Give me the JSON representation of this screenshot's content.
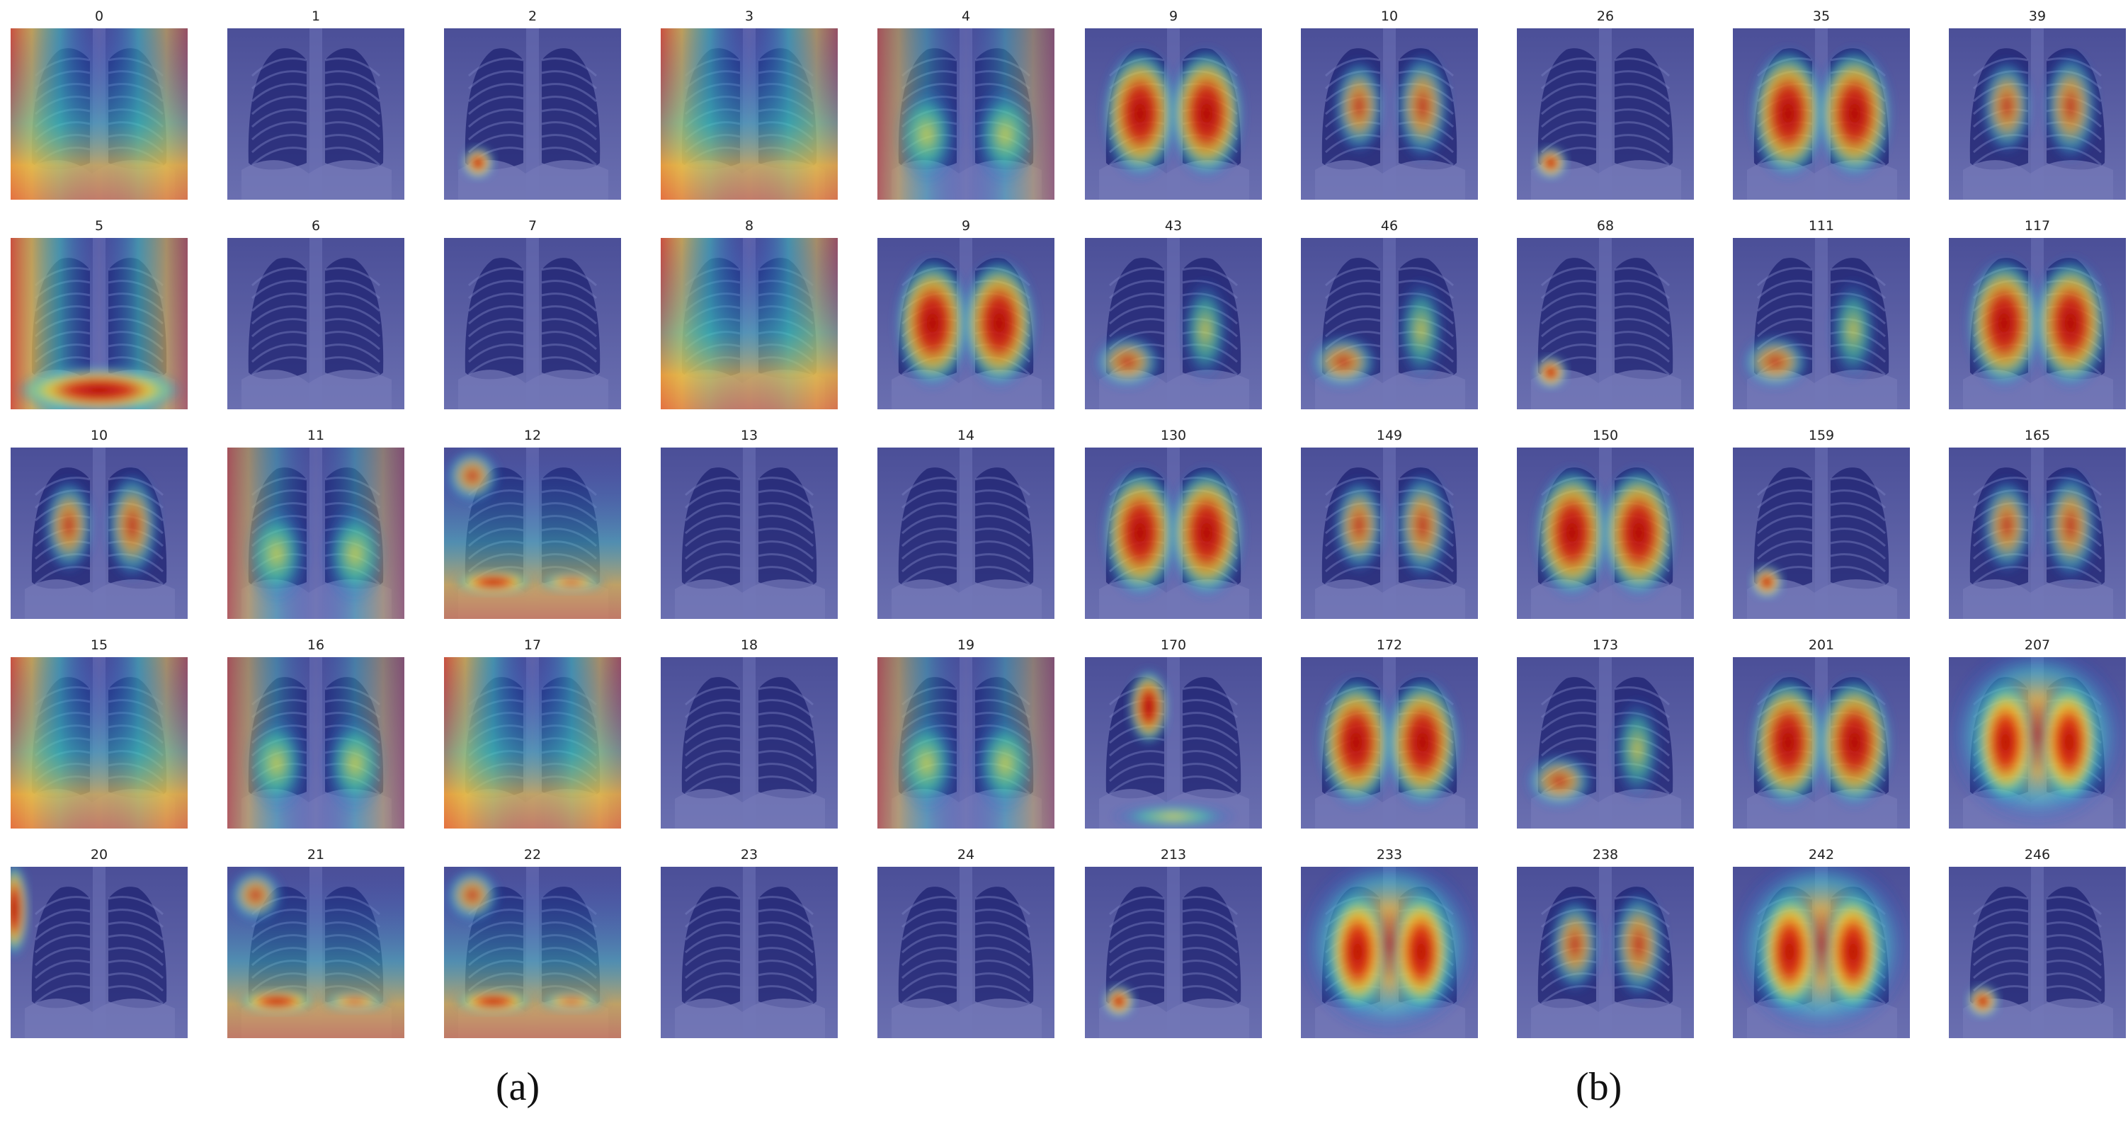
{
  "panel_labels": {
    "a": "(a)",
    "b": "(b)"
  },
  "colormap": "jet",
  "panels": [
    {
      "key": "a",
      "rows": [
        [
          {
            "label": "0",
            "heat": "edges-warm"
          },
          {
            "label": "1",
            "heat": "none"
          },
          {
            "label": "2",
            "heat": "small-spot-left-low"
          },
          {
            "label": "3",
            "heat": "edges-warm"
          },
          {
            "label": "4",
            "heat": "edges-mixed"
          }
        ],
        [
          {
            "label": "5",
            "heat": "bottom-warm"
          },
          {
            "label": "6",
            "heat": "none"
          },
          {
            "label": "7",
            "heat": "none"
          },
          {
            "label": "8",
            "heat": "edges-warm"
          },
          {
            "label": "9",
            "heat": "both-lungs-hot"
          }
        ],
        [
          {
            "label": "10",
            "heat": "both-lungs-mid"
          },
          {
            "label": "11",
            "heat": "edges-mixed"
          },
          {
            "label": "12",
            "heat": "bottom-band"
          },
          {
            "label": "13",
            "heat": "none"
          },
          {
            "label": "14",
            "heat": "none"
          }
        ],
        [
          {
            "label": "15",
            "heat": "edges-warm"
          },
          {
            "label": "16",
            "heat": "edges-mixed"
          },
          {
            "label": "17",
            "heat": "edges-warm"
          },
          {
            "label": "18",
            "heat": "none"
          },
          {
            "label": "19",
            "heat": "edges-mixed"
          }
        ],
        [
          {
            "label": "20",
            "heat": "left-edge"
          },
          {
            "label": "21",
            "heat": "bottom-band"
          },
          {
            "label": "22",
            "heat": "bottom-band"
          },
          {
            "label": "23",
            "heat": "none"
          },
          {
            "label": "24",
            "heat": "none"
          }
        ]
      ]
    },
    {
      "key": "b",
      "rows": [
        [
          {
            "label": "9",
            "heat": "both-lungs-hot"
          },
          {
            "label": "10",
            "heat": "both-lungs-mid"
          },
          {
            "label": "26",
            "heat": "small-spot-left-low"
          },
          {
            "label": "35",
            "heat": "both-lungs-hot"
          },
          {
            "label": "39",
            "heat": "both-lungs-mid"
          }
        ],
        [
          {
            "label": "43",
            "heat": "lower-left-lung"
          },
          {
            "label": "46",
            "heat": "lower-left-lung"
          },
          {
            "label": "68",
            "heat": "small-spot-left-low"
          },
          {
            "label": "111",
            "heat": "lower-left-lung"
          },
          {
            "label": "117",
            "heat": "both-lungs-hot"
          }
        ],
        [
          {
            "label": "130",
            "heat": "both-lungs-hot"
          },
          {
            "label": "149",
            "heat": "both-lungs-mid"
          },
          {
            "label": "150",
            "heat": "both-lungs-hot"
          },
          {
            "label": "159",
            "heat": "small-spot-left-low"
          },
          {
            "label": "165",
            "heat": "both-lungs-mid"
          }
        ],
        [
          {
            "label": "170",
            "heat": "upper-left-lung"
          },
          {
            "label": "172",
            "heat": "both-lungs-hot"
          },
          {
            "label": "173",
            "heat": "lower-left-lung"
          },
          {
            "label": "201",
            "heat": "both-lungs-hot"
          },
          {
            "label": "207",
            "heat": "whole-warm"
          }
        ],
        [
          {
            "label": "213",
            "heat": "small-spot-left-low"
          },
          {
            "label": "233",
            "heat": "whole-warm"
          },
          {
            "label": "238",
            "heat": "both-lungs-mid"
          },
          {
            "label": "242",
            "heat": "whole-warm"
          },
          {
            "label": "246",
            "heat": "small-spot-left-low"
          }
        ]
      ]
    }
  ]
}
